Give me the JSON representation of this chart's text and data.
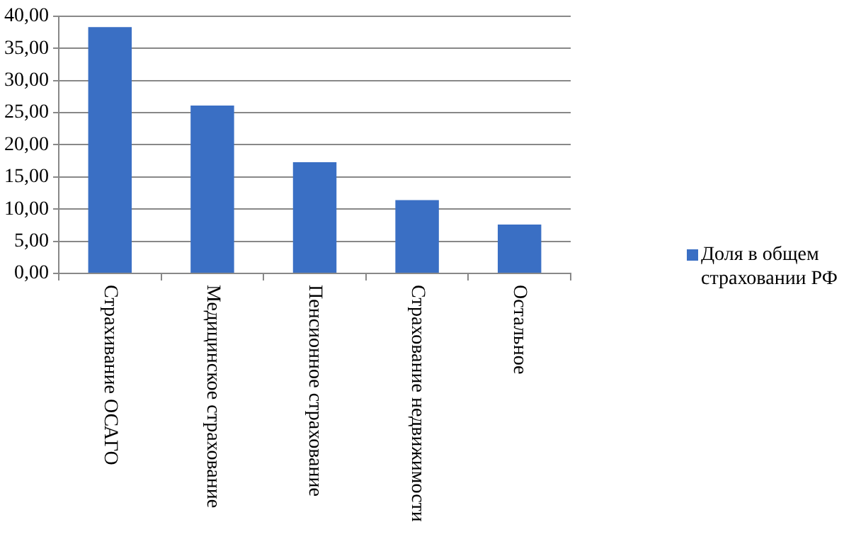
{
  "chart_data": {
    "type": "bar",
    "categories": [
      "Страхивание ОСАГО",
      "Медицинское страхование",
      "Пенсионное страхование",
      "Страхование недвижимости",
      "Остальное"
    ],
    "series": [
      {
        "name": "Доля в общем страховании РФ",
        "color": "#3a6fc4",
        "values": [
          38.3,
          26.1,
          17.3,
          11.4,
          7.6
        ]
      }
    ],
    "ylim": [
      0,
      40
    ],
    "yticks": [
      {
        "value": 0,
        "label": "0,00"
      },
      {
        "value": 5,
        "label": "5,00"
      },
      {
        "value": 10,
        "label": "10,00"
      },
      {
        "value": 15,
        "label": "15,00"
      },
      {
        "value": 20,
        "label": "20,00"
      },
      {
        "value": 25,
        "label": "25,00"
      },
      {
        "value": 30,
        "label": "30,00"
      },
      {
        "value": 35,
        "label": "35,00"
      },
      {
        "value": 40,
        "label": "40,00"
      }
    ],
    "grid": "y",
    "legend": "right"
  }
}
